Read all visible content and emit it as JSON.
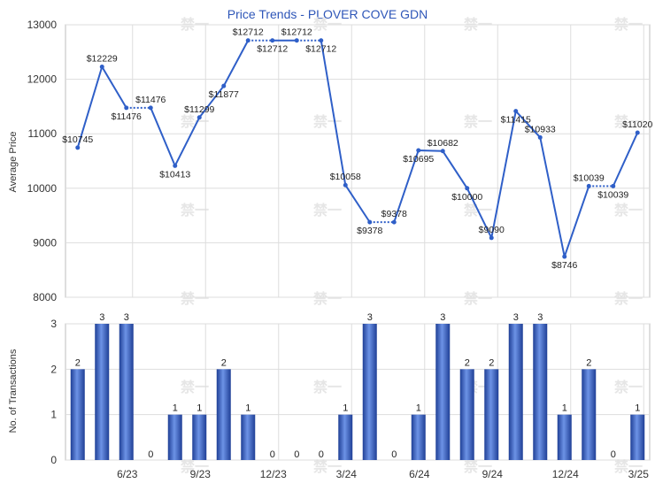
{
  "chart_data": [
    {
      "type": "line",
      "title": "Price Trends - PLOVER COVE GDN",
      "ylabel": "Average Price",
      "ylim": [
        8000,
        13000
      ],
      "yticks": [
        8000,
        9000,
        10000,
        11000,
        12000,
        13000
      ],
      "x_tick_labels": [
        "6/23",
        "9/23",
        "12/23",
        "3/24",
        "6/24",
        "9/24",
        "12/24",
        "3/25"
      ],
      "series": [
        {
          "values": [
            10745,
            12229,
            11476,
            11476,
            10413,
            11299,
            11877,
            12712,
            12712,
            12712,
            12712,
            10058,
            9378,
            9378,
            10695,
            10682,
            10000,
            9090,
            11415,
            10933,
            8746,
            10039,
            10039,
            11020
          ],
          "labels": [
            "$10745",
            "$12229",
            "$11476",
            "$11476",
            "$10413",
            "$11299",
            "$11877",
            "$12712",
            "$12712",
            "$12712",
            "$12712",
            "$10058",
            "$9378",
            "$9378",
            "$10695",
            "$10682",
            "$10000",
            "$9090",
            "$11415",
            "$10933",
            "$8746",
            "$10039",
            "$10039",
            "$11020"
          ],
          "carried_forward": [
            false,
            false,
            false,
            true,
            false,
            false,
            false,
            false,
            true,
            false,
            true,
            false,
            false,
            true,
            false,
            false,
            false,
            false,
            false,
            false,
            false,
            false,
            true,
            false
          ],
          "color": "#2f5fc8"
        }
      ],
      "grid": true
    },
    {
      "type": "bar",
      "ylabel": "No. of Transactions",
      "ylim": [
        0,
        3
      ],
      "yticks": [
        0,
        1,
        2,
        3
      ],
      "x_tick_labels": [
        "6/23",
        "9/23",
        "12/23",
        "3/24",
        "6/24",
        "9/24",
        "12/24",
        "3/25"
      ],
      "values": [
        2,
        3,
        3,
        0,
        1,
        1,
        2,
        1,
        0,
        0,
        0,
        1,
        3,
        0,
        1,
        3,
        2,
        2,
        3,
        3,
        1,
        2,
        0,
        1
      ],
      "color": "#3a66c8",
      "grid": true
    }
  ],
  "watermark": "禁一"
}
